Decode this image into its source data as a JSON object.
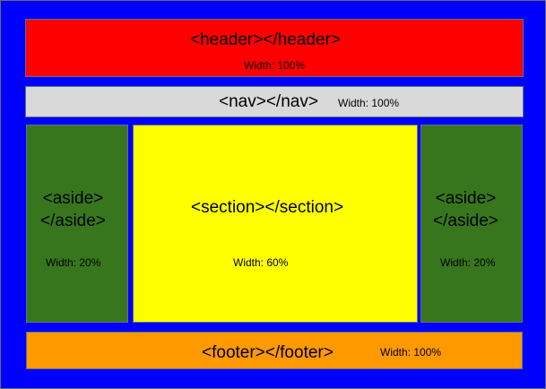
{
  "colors": {
    "background": "#0000ff",
    "header": "#ff0000",
    "nav": "#d9d9d9",
    "aside": "#38761d",
    "section": "#ffff00",
    "footer": "#ff9900"
  },
  "header": {
    "tag": "<header></header>",
    "width": "Width: 100%"
  },
  "nav": {
    "tag": "<nav></nav>",
    "width": "Width: 100%"
  },
  "aside_left": {
    "tag_open": "<aside>",
    "tag_close": "</aside>",
    "width": "Width: 20%"
  },
  "section": {
    "tag": "<section></section>",
    "width": "Width: 60%"
  },
  "aside_right": {
    "tag_open": "<aside>",
    "tag_close": "</aside>",
    "width": "Width: 20%"
  },
  "footer": {
    "tag": "<footer></footer>",
    "width": "Width: 100%"
  }
}
